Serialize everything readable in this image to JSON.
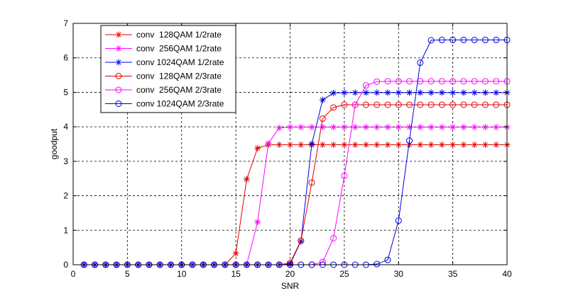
{
  "chart_data": {
    "type": "line",
    "title": "",
    "xlabel": "SNR",
    "ylabel": "goodput",
    "xlim": [
      0,
      40
    ],
    "ylim": [
      0,
      7
    ],
    "xticks": [
      0,
      5,
      10,
      15,
      20,
      25,
      30,
      35,
      40
    ],
    "yticks": [
      0,
      1,
      2,
      3,
      4,
      5,
      6,
      7
    ],
    "grid": true,
    "legend_position": "top-left",
    "x": [
      1,
      2,
      3,
      4,
      5,
      6,
      7,
      8,
      9,
      10,
      11,
      12,
      13,
      14,
      15,
      16,
      17,
      18,
      19,
      20,
      21,
      22,
      23,
      24,
      25,
      26,
      27,
      28,
      29,
      30,
      31,
      32,
      33,
      34,
      35,
      36,
      37,
      38,
      39,
      40
    ],
    "series": [
      {
        "name": "conv  128QAM 1/2rate",
        "color": "#e00000",
        "marker": "star",
        "values": [
          0,
          0,
          0,
          0,
          0,
          0,
          0,
          0,
          0,
          0,
          0,
          0,
          0,
          0,
          0.33,
          2.48,
          3.38,
          3.48,
          3.48,
          3.48,
          3.48,
          3.48,
          3.48,
          3.48,
          3.48,
          3.48,
          3.48,
          3.48,
          3.48,
          3.48,
          3.48,
          3.48,
          3.48,
          3.48,
          3.48,
          3.48,
          3.48,
          3.48,
          3.48,
          3.48
        ]
      },
      {
        "name": "conv  256QAM 1/2rate",
        "color": "#ff00ff",
        "marker": "star",
        "values": [
          0,
          0,
          0,
          0,
          0,
          0,
          0,
          0,
          0,
          0,
          0,
          0,
          0,
          0,
          0,
          0,
          1.24,
          3.52,
          3.97,
          3.99,
          3.99,
          3.99,
          3.99,
          3.99,
          3.99,
          3.99,
          3.99,
          3.99,
          3.99,
          3.99,
          3.99,
          3.99,
          3.99,
          3.99,
          3.99,
          3.99,
          3.99,
          3.99,
          3.99,
          3.99
        ]
      },
      {
        "name": "conv 1024QAM 1/2rate",
        "color": "#0000e0",
        "marker": "star",
        "values": [
          0,
          0,
          0,
          0,
          0,
          0,
          0,
          0,
          0,
          0,
          0,
          0,
          0,
          0,
          0,
          0,
          0,
          0,
          0,
          0.02,
          0.68,
          3.5,
          4.78,
          4.98,
          4.99,
          4.99,
          4.99,
          4.99,
          4.99,
          4.99,
          4.99,
          4.99,
          4.99,
          4.99,
          4.99,
          4.99,
          4.99,
          4.99,
          4.99,
          4.99
        ]
      },
      {
        "name": "conv  128QAM 2/3rate",
        "color": "#e00000",
        "marker": "circle",
        "values": [
          0,
          0,
          0,
          0,
          0,
          0,
          0,
          0,
          0,
          0,
          0,
          0,
          0,
          0,
          0,
          0,
          0,
          0,
          0,
          0.05,
          0.7,
          2.38,
          4.24,
          4.56,
          4.64,
          4.64,
          4.64,
          4.64,
          4.64,
          4.64,
          4.64,
          4.64,
          4.64,
          4.64,
          4.64,
          4.64,
          4.64,
          4.64,
          4.64,
          4.64
        ]
      },
      {
        "name": "conv  256QAM 2/3rate",
        "color": "#ff00ff",
        "marker": "circle",
        "values": [
          0,
          0,
          0,
          0,
          0,
          0,
          0,
          0,
          0,
          0,
          0,
          0,
          0,
          0,
          0,
          0,
          0,
          0,
          0,
          0,
          0,
          0,
          0.08,
          0.77,
          2.58,
          4.64,
          5.2,
          5.31,
          5.32,
          5.32,
          5.32,
          5.32,
          5.32,
          5.32,
          5.32,
          5.32,
          5.32,
          5.32,
          5.32,
          5.32
        ]
      },
      {
        "name": "conv 1024QAM 2/3rate",
        "color": "#0000e0",
        "marker": "circle",
        "values": [
          0,
          0,
          0,
          0,
          0,
          0,
          0,
          0,
          0,
          0,
          0,
          0,
          0,
          0,
          0,
          0,
          0,
          0,
          0,
          0,
          0,
          0,
          0,
          0,
          0,
          0,
          0,
          0.02,
          0.14,
          1.28,
          3.6,
          5.86,
          6.51,
          6.52,
          6.52,
          6.52,
          6.52,
          6.52,
          6.52,
          6.52
        ]
      }
    ]
  }
}
